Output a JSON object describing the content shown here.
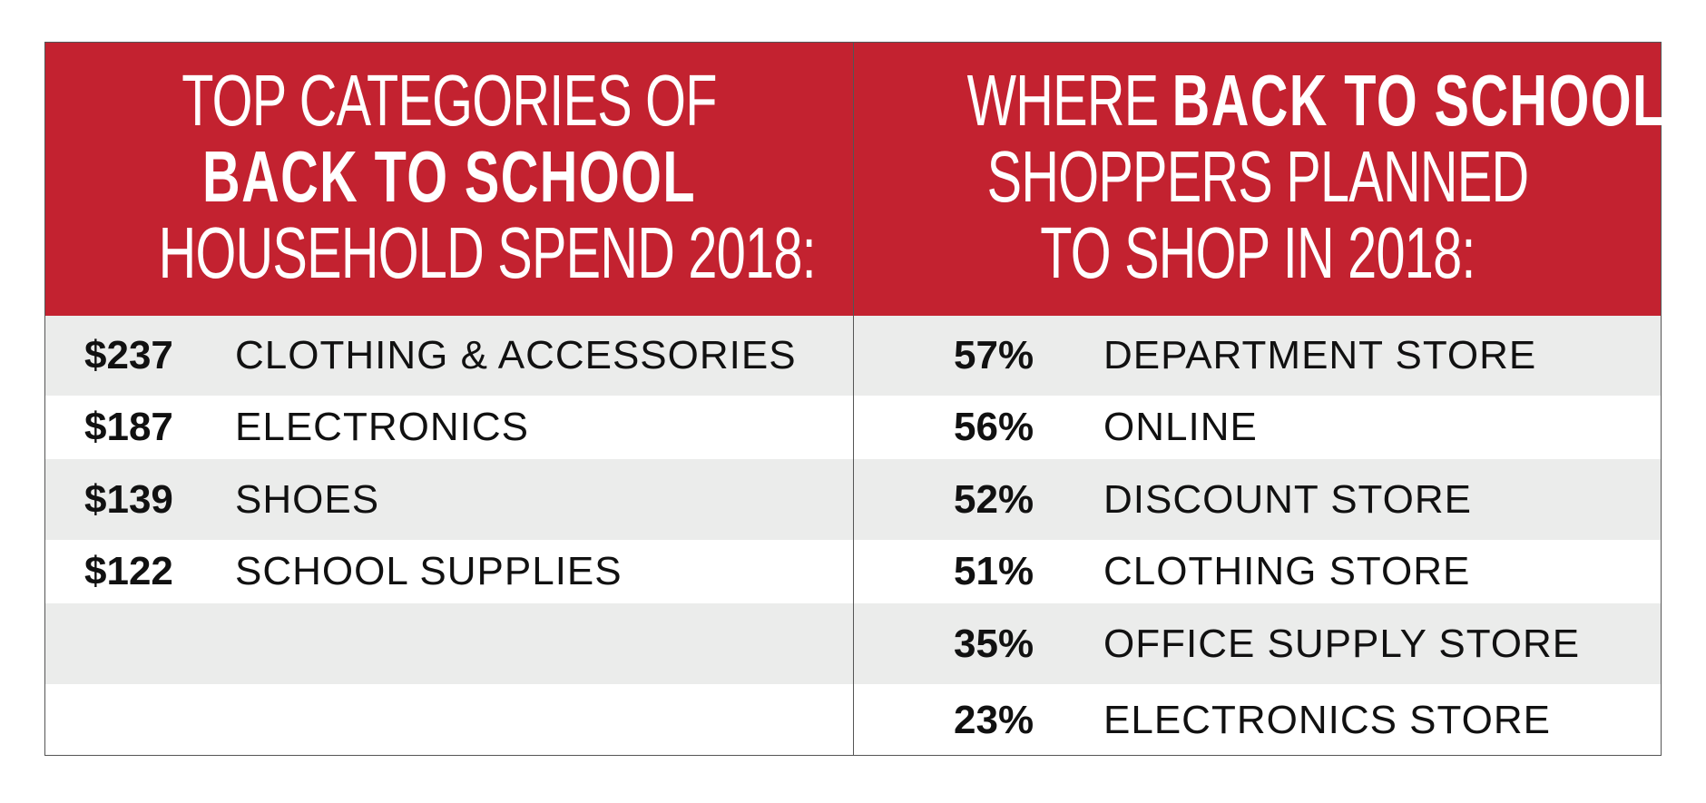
{
  "colors": {
    "header": "#c32230",
    "row_alt": "#ebeceb",
    "text": "#111111"
  },
  "left": {
    "title_lines": [
      [
        {
          "t": "TOP CATEGORIES OF",
          "b": false
        }
      ],
      [
        {
          "t": "BACK TO SCHOOL",
          "b": true
        }
      ],
      [
        {
          "t": "HOUSEHOLD SPEND 2018:",
          "b": false
        }
      ]
    ],
    "rows": [
      {
        "amount": "$237",
        "label": "CLOTHING & ACCESSORIES"
      },
      {
        "amount": "$187",
        "label": "ELECTRONICS"
      },
      {
        "amount": "$139",
        "label": "SHOES"
      },
      {
        "amount": "$122",
        "label": "SCHOOL SUPPLIES"
      }
    ]
  },
  "right": {
    "title_lines": [
      [
        {
          "t": "WHERE ",
          "b": false
        },
        {
          "t": "BACK TO SCHOOL",
          "b": true
        }
      ],
      [
        {
          "t": "SHOPPERS PLANNED",
          "b": false
        }
      ],
      [
        {
          "t": "TO SHOP IN 2018:",
          "b": false
        }
      ]
    ],
    "rows": [
      {
        "amount": "57%",
        "label": "DEPARTMENT STORE"
      },
      {
        "amount": "56%",
        "label": "ONLINE"
      },
      {
        "amount": "52%",
        "label": "DISCOUNT STORE"
      },
      {
        "amount": "51%",
        "label": "CLOTHING STORE"
      },
      {
        "amount": "35%",
        "label": "OFFICE SUPPLY STORE"
      },
      {
        "amount": "23%",
        "label": "ELECTRONICS STORE"
      }
    ]
  }
}
